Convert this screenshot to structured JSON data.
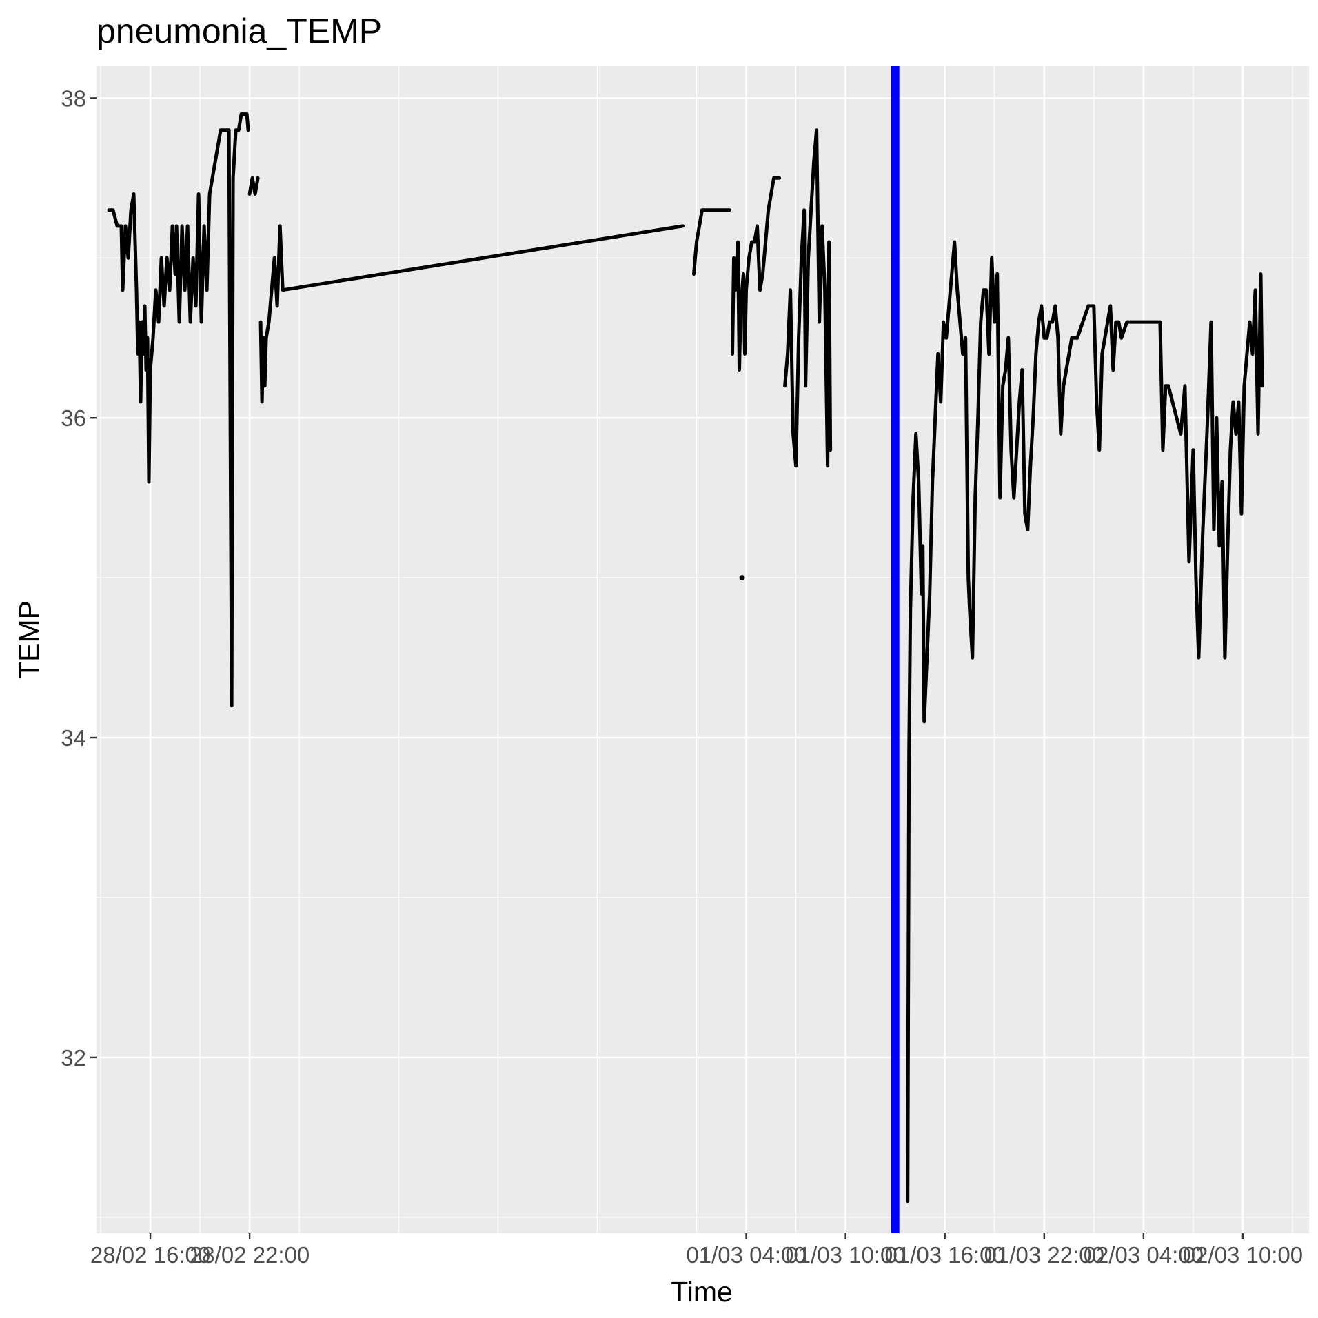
{
  "chart_data": {
    "type": "line",
    "title": "pneumonia_TEMP",
    "xlabel": "Time",
    "ylabel": "TEMP",
    "x_ticks": [
      "28/02 16:00",
      "28/02 22:00",
      "01/03 04:00",
      "01/03 10:00",
      "01/03 16:00",
      "01/03 22:00",
      "02/03 04:00",
      "02/03 10:00"
    ],
    "y_ticks": [
      32,
      34,
      36,
      38
    ],
    "xlim": [
      "28/02 12:45",
      "02/03 14:00"
    ],
    "ylim": [
      30.9,
      38.2
    ],
    "grid": true,
    "background": "#ebebeb",
    "line_color": "#000000",
    "marker_line": {
      "x": "01/03 13:00",
      "color": "#0000ff"
    },
    "series": [
      {
        "segments": [
          [
            [
              "28/02 13:30",
              37.3
            ],
            [
              "28/02 13:45",
              37.3
            ],
            [
              "28/02 14:00",
              37.2
            ],
            [
              "28/02 14:15",
              37.2
            ],
            [
              "28/02 14:20",
              36.8
            ],
            [
              "28/02 14:30",
              37.2
            ],
            [
              "28/02 14:40",
              37.0
            ],
            [
              "28/02 14:50",
              37.3
            ],
            [
              "28/02 15:00",
              37.4
            ],
            [
              "28/02 15:10",
              36.8
            ],
            [
              "28/02 15:15",
              36.4
            ],
            [
              "28/02 15:20",
              36.6
            ],
            [
              "28/02 15:25",
              36.1
            ],
            [
              "28/02 15:30",
              36.6
            ],
            [
              "28/02 15:35",
              36.4
            ],
            [
              "28/02 15:40",
              36.7
            ],
            [
              "28/02 15:45",
              36.3
            ],
            [
              "28/02 15:50",
              36.5
            ],
            [
              "28/02 15:55",
              35.6
            ],
            [
              "28/02 16:00",
              36.3
            ],
            [
              "28/02 16:10",
              36.5
            ],
            [
              "28/02 16:20",
              36.8
            ],
            [
              "28/02 16:30",
              36.6
            ],
            [
              "28/02 16:40",
              37.0
            ],
            [
              "28/02 16:50",
              36.7
            ],
            [
              "28/02 17:00",
              37.0
            ],
            [
              "28/02 17:10",
              36.8
            ],
            [
              "28/02 17:20",
              37.2
            ],
            [
              "28/02 17:30",
              36.9
            ],
            [
              "28/02 17:35",
              37.2
            ],
            [
              "28/02 17:45",
              36.6
            ],
            [
              "28/02 17:55",
              37.2
            ],
            [
              "28/02 18:05",
              36.8
            ],
            [
              "28/02 18:15",
              37.2
            ],
            [
              "28/02 18:25",
              36.6
            ],
            [
              "28/02 18:35",
              37.0
            ],
            [
              "28/02 18:45",
              36.7
            ],
            [
              "28/02 18:55",
              37.4
            ],
            [
              "28/02 19:05",
              36.6
            ],
            [
              "28/02 19:15",
              37.2
            ],
            [
              "28/02 19:25",
              36.8
            ],
            [
              "28/02 19:35",
              37.4
            ],
            [
              "28/02 19:45",
              37.5
            ],
            [
              "28/02 19:55",
              37.6
            ],
            [
              "28/02 20:05",
              37.7
            ],
            [
              "28/02 20:15",
              37.8
            ],
            [
              "28/02 20:25",
              37.8
            ],
            [
              "28/02 20:35",
              37.8
            ],
            [
              "28/02 20:45",
              37.8
            ],
            [
              "28/02 20:55",
              34.2
            ],
            [
              "28/02 21:00",
              37.5
            ],
            [
              "28/02 21:10",
              37.8
            ],
            [
              "28/02 21:20",
              37.8
            ],
            [
              "28/02 21:30",
              37.9
            ],
            [
              "28/02 21:40",
              37.9
            ],
            [
              "28/02 21:50",
              37.9
            ],
            [
              "28/02 21:55",
              37.8
            ]
          ],
          [
            [
              "28/02 22:00",
              37.4
            ],
            [
              "28/02 22:10",
              37.5
            ],
            [
              "28/02 22:20",
              37.4
            ],
            [
              "28/02 22:30",
              37.5
            ]
          ],
          [
            [
              "28/02 22:40",
              36.6
            ],
            [
              "28/02 22:45",
              36.1
            ],
            [
              "28/02 22:50",
              36.5
            ],
            [
              "28/02 22:55",
              36.2
            ],
            [
              "28/02 23:00",
              36.5
            ],
            [
              "28/02 23:10",
              36.6
            ],
            [
              "28/02 23:20",
              36.8
            ],
            [
              "28/02 23:30",
              37.0
            ],
            [
              "28/02 23:40",
              36.7
            ],
            [
              "28/02 23:50",
              37.2
            ],
            [
              "29/02 00:00",
              36.8
            ],
            [
              "01/03 00:10",
              37.2
            ]
          ],
          [
            [
              "01/03 00:50",
              36.9
            ],
            [
              "01/03 01:00",
              37.1
            ],
            [
              "01/03 01:10",
              37.2
            ],
            [
              "01/03 01:20",
              37.3
            ],
            [
              "01/03 01:40",
              37.3
            ],
            [
              "01/03 02:00",
              37.3
            ],
            [
              "01/03 02:20",
              37.3
            ],
            [
              "01/03 02:40",
              37.3
            ],
            [
              "01/03 03:00",
              37.3
            ]
          ],
          [
            [
              "01/03 03:10",
              36.4
            ],
            [
              "01/03 03:15",
              37.0
            ],
            [
              "01/03 03:20",
              36.8
            ],
            [
              "01/03 03:30",
              37.1
            ],
            [
              "01/03 03:35",
              36.3
            ],
            [
              "01/03 03:40",
              36.7
            ],
            [
              "01/03 03:50",
              36.9
            ],
            [
              "01/03 03:55",
              36.4
            ],
            [
              "01/03 04:00",
              36.8
            ],
            [
              "01/03 04:10",
              37.0
            ],
            [
              "01/03 04:20",
              37.1
            ],
            [
              "01/03 04:30",
              37.1
            ],
            [
              "01/03 04:40",
              37.2
            ],
            [
              "01/03 04:50",
              36.8
            ],
            [
              "01/03 05:00",
              36.9
            ],
            [
              "01/03 05:10",
              37.1
            ],
            [
              "01/03 05:20",
              37.3
            ],
            [
              "01/03 05:30",
              37.4
            ],
            [
              "01/03 05:40",
              37.5
            ],
            [
              "01/03 05:50",
              37.5
            ],
            [
              "01/03 06:00",
              37.5
            ]
          ],
          [
            [
              "01/03 06:20",
              36.2
            ],
            [
              "01/03 06:30",
              36.4
            ],
            [
              "01/03 06:40",
              36.8
            ],
            [
              "01/03 06:50",
              35.9
            ],
            [
              "01/03 07:00",
              35.7
            ],
            [
              "01/03 07:10",
              36.5
            ],
            [
              "01/03 07:20",
              37.0
            ],
            [
              "01/03 07:30",
              37.3
            ],
            [
              "01/03 07:35",
              36.2
            ],
            [
              "01/03 07:45",
              37.0
            ],
            [
              "01/03 07:55",
              37.3
            ],
            [
              "01/03 08:05",
              37.6
            ],
            [
              "01/03 08:15",
              37.8
            ],
            [
              "01/03 08:25",
              36.6
            ],
            [
              "01/03 08:35",
              37.2
            ],
            [
              "01/03 08:45",
              36.8
            ],
            [
              "01/03 08:55",
              35.7
            ],
            [
              "01/03 09:00",
              37.1
            ],
            [
              "01/03 09:05",
              35.8
            ]
          ],
          [
            [
              "01/03 13:45",
              31.1
            ],
            [
              "01/03 13:50",
              33.9
            ],
            [
              "01/03 13:55",
              34.8
            ],
            [
              "01/03 14:05",
              35.5
            ],
            [
              "01/03 14:15",
              35.9
            ],
            [
              "01/03 14:25",
              35.6
            ],
            [
              "01/03 14:35",
              34.9
            ],
            [
              "01/03 14:40",
              35.2
            ],
            [
              "01/03 14:45",
              34.1
            ],
            [
              "01/03 14:55",
              34.5
            ],
            [
              "01/03 15:05",
              34.9
            ],
            [
              "01/03 15:15",
              35.6
            ],
            [
              "01/03 15:25",
              36.0
            ],
            [
              "01/03 15:35",
              36.4
            ],
            [
              "01/03 15:45",
              36.1
            ],
            [
              "01/03 15:55",
              36.6
            ],
            [
              "01/03 16:05",
              36.5
            ],
            [
              "01/03 16:15",
              36.7
            ],
            [
              "01/03 16:25",
              36.9
            ],
            [
              "01/03 16:35",
              37.1
            ],
            [
              "01/03 16:45",
              36.8
            ],
            [
              "01/03 16:55",
              36.6
            ],
            [
              "01/03 17:05",
              36.4
            ],
            [
              "01/03 17:15",
              36.5
            ],
            [
              "01/03 17:25",
              35.0
            ],
            [
              "01/03 17:30",
              34.8
            ],
            [
              "01/03 17:40",
              34.5
            ],
            [
              "01/03 17:50",
              35.5
            ],
            [
              "01/03 18:00",
              36.0
            ],
            [
              "01/03 18:10",
              36.6
            ],
            [
              "01/03 18:20",
              36.8
            ],
            [
              "01/03 18:30",
              36.8
            ],
            [
              "01/03 18:40",
              36.4
            ],
            [
              "01/03 18:50",
              37.0
            ],
            [
              "01/03 19:00",
              36.6
            ],
            [
              "01/03 19:10",
              36.9
            ],
            [
              "01/03 19:20",
              35.5
            ],
            [
              "01/03 19:30",
              36.2
            ],
            [
              "01/03 19:40",
              36.3
            ],
            [
              "01/03 19:50",
              36.5
            ],
            [
              "01/03 20:00",
              35.8
            ],
            [
              "01/03 20:10",
              35.5
            ],
            [
              "01/03 20:20",
              35.8
            ],
            [
              "01/03 20:30",
              36.1
            ],
            [
              "01/03 20:40",
              36.3
            ],
            [
              "01/03 20:50",
              35.4
            ],
            [
              "01/03 21:00",
              35.3
            ],
            [
              "01/03 21:10",
              35.7
            ],
            [
              "01/03 21:20",
              36.0
            ],
            [
              "01/03 21:30",
              36.4
            ],
            [
              "01/03 21:40",
              36.6
            ],
            [
              "01/03 21:50",
              36.7
            ],
            [
              "01/03 22:00",
              36.5
            ],
            [
              "01/03 22:10",
              36.5
            ],
            [
              "01/03 22:20",
              36.6
            ],
            [
              "01/03 22:30",
              36.6
            ],
            [
              "01/03 22:40",
              36.7
            ],
            [
              "01/03 22:50",
              36.5
            ],
            [
              "01/03 23:00",
              35.9
            ],
            [
              "01/03 23:10",
              36.2
            ],
            [
              "01/03 23:20",
              36.3
            ],
            [
              "01/03 23:30",
              36.4
            ],
            [
              "01/03 23:40",
              36.5
            ],
            [
              "01/03 23:50",
              36.5
            ],
            [
              "02/03 00:00",
              36.5
            ],
            [
              "02/03 00:20",
              36.6
            ],
            [
              "02/03 00:40",
              36.7
            ],
            [
              "02/03 01:00",
              36.7
            ],
            [
              "02/03 01:10",
              36.1
            ],
            [
              "02/03 01:20",
              35.8
            ],
            [
              "02/03 01:30",
              36.4
            ],
            [
              "02/03 01:40",
              36.5
            ],
            [
              "02/03 01:50",
              36.6
            ],
            [
              "02/03 02:00",
              36.7
            ],
            [
              "02/03 02:10",
              36.3
            ],
            [
              "02/03 02:20",
              36.6
            ],
            [
              "02/03 02:30",
              36.6
            ],
            [
              "02/03 02:40",
              36.5
            ],
            [
              "02/03 03:00",
              36.6
            ],
            [
              "02/03 03:30",
              36.6
            ],
            [
              "02/03 04:00",
              36.6
            ],
            [
              "02/03 04:30",
              36.6
            ],
            [
              "02/03 05:00",
              36.6
            ],
            [
              "02/03 05:10",
              35.8
            ],
            [
              "02/03 05:20",
              36.2
            ],
            [
              "02/03 05:30",
              36.2
            ],
            [
              "02/03 05:45",
              36.1
            ],
            [
              "02/03 06:00",
              36.0
            ],
            [
              "02/03 06:15",
              35.9
            ],
            [
              "02/03 06:30",
              36.2
            ],
            [
              "02/03 06:45",
              35.1
            ],
            [
              "02/03 07:00",
              35.8
            ],
            [
              "02/03 07:10",
              35.0
            ],
            [
              "02/03 07:20",
              34.5
            ],
            [
              "02/03 07:35",
              35.3
            ],
            [
              "02/03 07:50",
              35.9
            ],
            [
              "02/03 08:05",
              36.6
            ],
            [
              "02/03 08:15",
              35.3
            ],
            [
              "02/03 08:25",
              36.0
            ],
            [
              "02/03 08:35",
              35.2
            ],
            [
              "02/03 08:45",
              35.6
            ],
            [
              "02/03 08:55",
              34.5
            ],
            [
              "02/03 09:05",
              35.2
            ],
            [
              "02/03 09:15",
              35.8
            ],
            [
              "02/03 09:25",
              36.1
            ],
            [
              "02/03 09:35",
              35.9
            ],
            [
              "02/03 09:45",
              36.1
            ],
            [
              "02/03 09:55",
              35.4
            ],
            [
              "02/03 10:05",
              36.2
            ],
            [
              "02/03 10:15",
              36.4
            ],
            [
              "02/03 10:25",
              36.6
            ],
            [
              "02/03 10:35",
              36.4
            ],
            [
              "02/03 10:45",
              36.8
            ],
            [
              "02/03 10:55",
              35.9
            ],
            [
              "02/03 11:05",
              36.9
            ],
            [
              "02/03 11:10",
              36.2
            ]
          ]
        ],
        "points": [
          [
            "01/03 03:45",
            35.0
          ]
        ]
      }
    ]
  }
}
